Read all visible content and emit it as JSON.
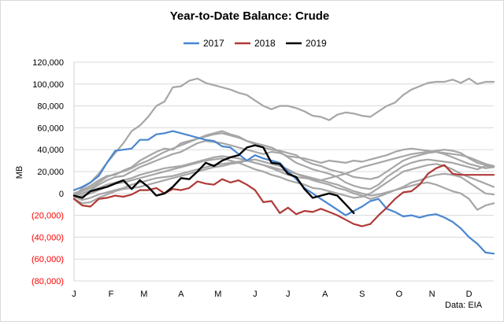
{
  "chart_data": {
    "type": "line",
    "title": "Year-to-Date Balance: Crude",
    "ylabel": "MB",
    "source": "Data: EIA",
    "ylim": [
      -80000,
      120000
    ],
    "yticks": [
      {
        "value": 120000,
        "label": "120,000"
      },
      {
        "value": 100000,
        "label": "100,000"
      },
      {
        "value": 80000,
        "label": "80,000"
      },
      {
        "value": 60000,
        "label": "60,000"
      },
      {
        "value": 40000,
        "label": "40,000"
      },
      {
        "value": 20000,
        "label": "20,000"
      },
      {
        "value": 0,
        "label": "0"
      },
      {
        "value": -20000,
        "label": "(20,000)"
      },
      {
        "value": -40000,
        "label": "(40,000)"
      },
      {
        "value": -60000,
        "label": "(60,000)"
      },
      {
        "value": -80000,
        "label": "(80,000)"
      }
    ],
    "xlim": [
      1,
      52
    ],
    "xticks": [
      {
        "week": 1,
        "label": "J"
      },
      {
        "week": 5.5,
        "label": "F"
      },
      {
        "week": 9.5,
        "label": "M"
      },
      {
        "week": 14,
        "label": "A"
      },
      {
        "week": 18.5,
        "label": "M"
      },
      {
        "week": 23,
        "label": "J"
      },
      {
        "week": 27,
        "label": "J"
      },
      {
        "week": 31.5,
        "label": "A"
      },
      {
        "week": 36,
        "label": "S"
      },
      {
        "week": 40.5,
        "label": "O"
      },
      {
        "week": 44.5,
        "label": "N"
      },
      {
        "week": 49,
        "label": "D"
      }
    ],
    "legend": {
      "placement": "top",
      "entries": [
        "2017",
        "2018",
        "2019"
      ]
    },
    "colors": {
      "2017": "#4a86d0",
      "2018": "#b03a37",
      "2019": "#000000",
      "history": "#a6a6a6"
    },
    "series": [
      {
        "name": "2017",
        "color": "#4a86d0",
        "width": 2.2,
        "values": [
          3000,
          6000,
          10000,
          16000,
          28000,
          39000,
          40000,
          41000,
          49000,
          49000,
          54000,
          55000,
          57000,
          55000,
          53000,
          51000,
          49000,
          48000,
          43000,
          42000,
          36000,
          30000,
          35000,
          32000,
          30000,
          28000,
          20000,
          13000,
          5000,
          0,
          -5000,
          -10000,
          -15000,
          -20000,
          -16000,
          -12000,
          -7000,
          -5000,
          -14000,
          -17000,
          -21000,
          -20000,
          -22000,
          -20000,
          -19000,
          -22000,
          -26000,
          -32000,
          -40000,
          -46000,
          -54000,
          -55000
        ]
      },
      {
        "name": "2018",
        "color": "#b03a37",
        "width": 2.2,
        "values": [
          -5000,
          -11000,
          -12000,
          -5000,
          -4000,
          -2000,
          -3000,
          -1000,
          3000,
          3000,
          5000,
          0,
          4000,
          3000,
          5000,
          11000,
          9000,
          8000,
          13000,
          10000,
          12000,
          8000,
          3000,
          -8000,
          -7000,
          -18000,
          -13000,
          -19000,
          -16000,
          -17000,
          -14000,
          -17000,
          -20000,
          -24000,
          -28000,
          -30000,
          -28000,
          -20000,
          -13000,
          -5000,
          1000,
          2000,
          8000,
          18000,
          23000,
          26000,
          18000,
          17000,
          17000,
          17000,
          17000,
          17000
        ]
      },
      {
        "name": "2019",
        "color": "#000000",
        "width": 2.4,
        "values": [
          -2000,
          -4000,
          2000,
          4000,
          6000,
          9000,
          12000,
          4000,
          12000,
          6000,
          -2000,
          0,
          6000,
          14000,
          13000,
          20000,
          28000,
          25000,
          30000,
          33000,
          35000,
          42000,
          44000,
          42000,
          28000,
          27000,
          18000,
          15000,
          4000,
          -4000,
          -2000,
          0,
          -2000,
          -10000,
          -18000
        ]
      },
      {
        "name": "",
        "color": "#a6a6a6",
        "width": 2.2,
        "values": [
          -3000,
          5000,
          10000,
          18000,
          28000,
          37000,
          46000,
          57000,
          62000,
          70000,
          80000,
          84000,
          97000,
          98000,
          103000,
          105000,
          101000,
          99000,
          97000,
          95000,
          92000,
          90000,
          85000,
          80000,
          77000,
          80000,
          80000,
          78000,
          75000,
          71000,
          70000,
          67000,
          72000,
          74000,
          73000,
          71000,
          70000,
          75000,
          80000,
          83000,
          90000,
          95000,
          98000,
          101000,
          102000,
          102000,
          104000,
          101000,
          105000,
          100000,
          102000,
          102000
        ]
      },
      {
        "name": "",
        "color": "#a6a6a6",
        "width": 2.2,
        "values": [
          -2000,
          0,
          3000,
          8000,
          12000,
          15000,
          16000,
          20000,
          24000,
          27000,
          30000,
          33000,
          36000,
          38000,
          42000,
          46000,
          48000,
          47000,
          46000,
          44000,
          42000,
          40000,
          38000,
          36000,
          38000,
          37000,
          34000,
          33000,
          32000,
          30000,
          28000,
          30000,
          29000,
          28000,
          30000,
          29000,
          31000,
          33000,
          35000,
          38000,
          40000,
          41000,
          40000,
          39000,
          38000,
          37000,
          36000,
          35000,
          33000,
          30000,
          27000,
          25000
        ]
      },
      {
        "name": "",
        "color": "#a6a6a6",
        "width": 2.2,
        "values": [
          -1000,
          2000,
          5000,
          10000,
          15000,
          18000,
          20000,
          23000,
          27000,
          30000,
          34000,
          38000,
          41000,
          44000,
          47000,
          50000,
          52000,
          54000,
          55000,
          53000,
          51000,
          48000,
          45000,
          42000,
          40000,
          39000,
          37000,
          35000,
          30000,
          27000,
          25000,
          22000,
          20000,
          18000,
          15000,
          14000,
          13000,
          15000,
          20000,
          25000,
          30000,
          33000,
          35000,
          37000,
          38000,
          36000,
          33000,
          30000,
          27000,
          25000,
          23000,
          24000
        ]
      },
      {
        "name": "",
        "color": "#a6a6a6",
        "width": 2.2,
        "values": [
          0,
          3000,
          7000,
          12000,
          16000,
          17000,
          21000,
          24000,
          30000,
          34000,
          38000,
          41000,
          40000,
          46000,
          48000,
          50000,
          53000,
          55000,
          57000,
          54000,
          52000,
          48000,
          46000,
          44000,
          42000,
          38000,
          33000,
          28000,
          25000,
          22000,
          20000,
          18000,
          15000,
          10000,
          7000,
          5000,
          4000,
          8000,
          15000,
          20000,
          25000,
          28000,
          30000,
          31000,
          30000,
          29000,
          28000,
          26000,
          24000,
          22000,
          25000,
          24000
        ]
      },
      {
        "name": "",
        "color": "#a6a6a6",
        "width": 2.2,
        "values": [
          -4000,
          -2000,
          0,
          3000,
          6000,
          9000,
          10000,
          12000,
          14000,
          16000,
          18000,
          20000,
          22000,
          24000,
          26000,
          28000,
          30000,
          31000,
          32000,
          30000,
          28000,
          25000,
          22000,
          20000,
          17000,
          15000,
          12000,
          10000,
          8000,
          5000,
          4000,
          2000,
          0,
          -2000,
          -4000,
          -3000,
          0,
          5000,
          10000,
          15000,
          20000,
          22000,
          24000,
          26000,
          27000,
          25000,
          22000,
          18000,
          15000,
          12000,
          9000,
          6000
        ]
      },
      {
        "name": "",
        "color": "#a6a6a6",
        "width": 2.2,
        "values": [
          -5000,
          -9000,
          -8000,
          -4000,
          -1000,
          2000,
          4000,
          5000,
          6000,
          8000,
          10000,
          12000,
          14000,
          16000,
          18000,
          20000,
          22000,
          24000,
          25000,
          27000,
          28000,
          30000,
          31000,
          29000,
          27000,
          25000,
          22000,
          18000,
          15000,
          12000,
          10000,
          8000,
          5000,
          3000,
          0,
          -2000,
          -5000,
          -3000,
          0,
          3000,
          6000,
          10000,
          12000,
          15000,
          17000,
          18000,
          17000,
          15000,
          10000,
          5000,
          0,
          -1000
        ]
      },
      {
        "name": "",
        "color": "#a6a6a6",
        "width": 2.2,
        "values": [
          -2000,
          0,
          2000,
          5000,
          8000,
          10000,
          12000,
          14000,
          17000,
          19000,
          21000,
          23000,
          24000,
          25000,
          27000,
          29000,
          31000,
          33000,
          34000,
          33000,
          32000,
          30000,
          28000,
          26000,
          24000,
          22000,
          20000,
          18000,
          16000,
          14000,
          12000,
          10000,
          8000,
          5000,
          2000,
          0,
          -2000,
          -1000,
          1000,
          3000,
          5000,
          7000,
          9000,
          10000,
          8000,
          5000,
          2000,
          0,
          -5000,
          -15000,
          -11000,
          -9000
        ]
      },
      {
        "name": "",
        "color": "#a6a6a6",
        "width": 2.2,
        "values": [
          -3000,
          -6000,
          -4000,
          -1000,
          1000,
          3000,
          5000,
          8000,
          10000,
          12000,
          14000,
          15000,
          16000,
          18000,
          20000,
          22000,
          24000,
          26000,
          27000,
          28000,
          29000,
          30000,
          28000,
          26000,
          23000,
          20000,
          17000,
          15000,
          14000,
          13000,
          12000,
          14000,
          16000,
          18000,
          21000,
          24000,
          26000,
          28000,
          30000,
          32000,
          34000,
          36000,
          37000,
          38000,
          39000,
          40000,
          39000,
          37000,
          32000,
          28000,
          26000,
          25000
        ]
      }
    ]
  }
}
